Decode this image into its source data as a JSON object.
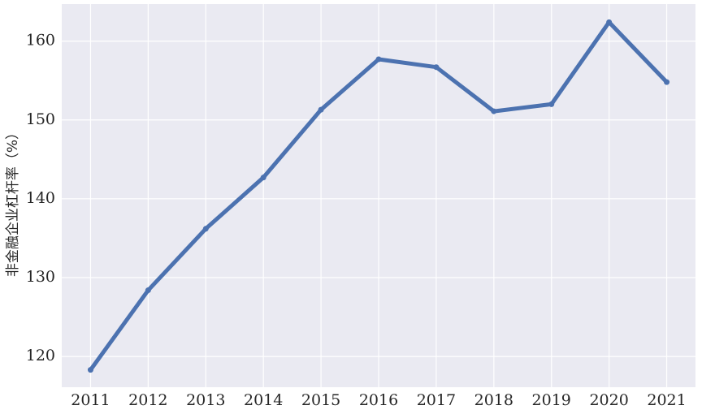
{
  "chart_data": {
    "type": "line",
    "ylabel": "非金融企业杠杆率（%）",
    "x": [
      2011,
      2012,
      2013,
      2014,
      2015,
      2016,
      2017,
      2018,
      2019,
      2020,
      2021
    ],
    "series": [
      {
        "name": "非金融企业杠杆率",
        "color": "#4c72b0",
        "values": [
          118.3,
          128.4,
          136.2,
          142.7,
          151.3,
          157.7,
          156.7,
          151.1,
          152.0,
          162.4,
          154.8
        ]
      }
    ],
    "xlim": [
      2010.5,
      2021.5
    ],
    "xticks": [
      2011,
      2012,
      2013,
      2014,
      2015,
      2016,
      2017,
      2018,
      2019,
      2020,
      2021
    ],
    "ylim": [
      116.1,
      164.7
    ],
    "yticks": [
      120,
      130,
      140,
      150,
      160
    ],
    "grid": true
  }
}
